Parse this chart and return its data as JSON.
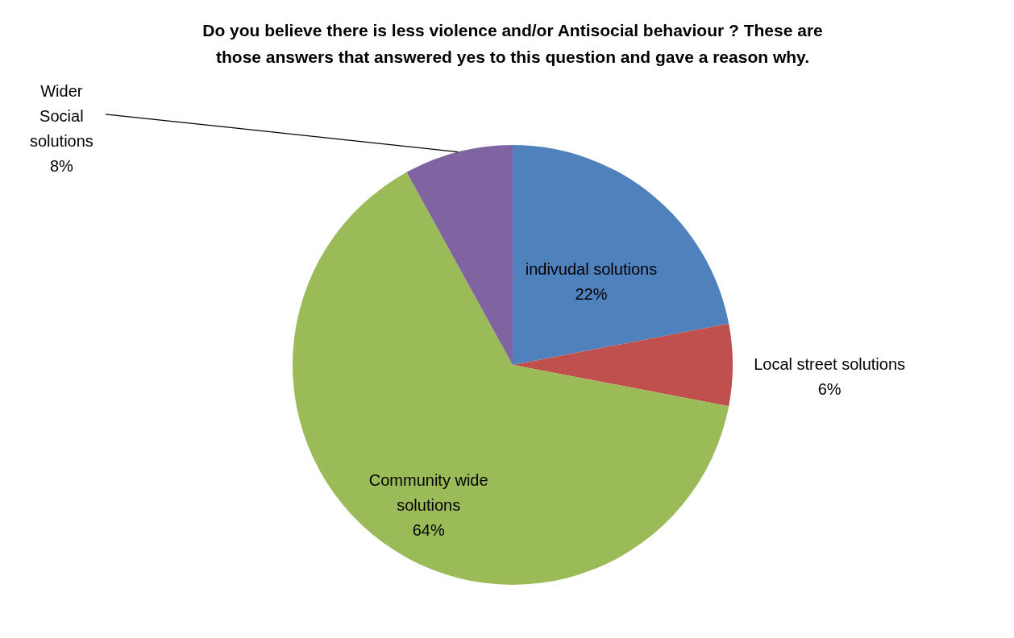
{
  "chart_data": {
    "type": "pie",
    "title": "Do you believe there is less violence and/or Antisocial behaviour ? These are those answers that answered yes to this question and gave a reason why.",
    "categories": [
      "indivudal solutions",
      "Local street solutions",
      "Community wide solutions",
      "Wider Social solutions"
    ],
    "values": [
      22,
      6,
      64,
      8
    ],
    "value_labels": [
      "22%",
      "6%",
      "64%",
      "8%"
    ],
    "colors": [
      "#4f81bd",
      "#c0504d",
      "#9bbb59",
      "#8064a2"
    ],
    "legend": false
  }
}
